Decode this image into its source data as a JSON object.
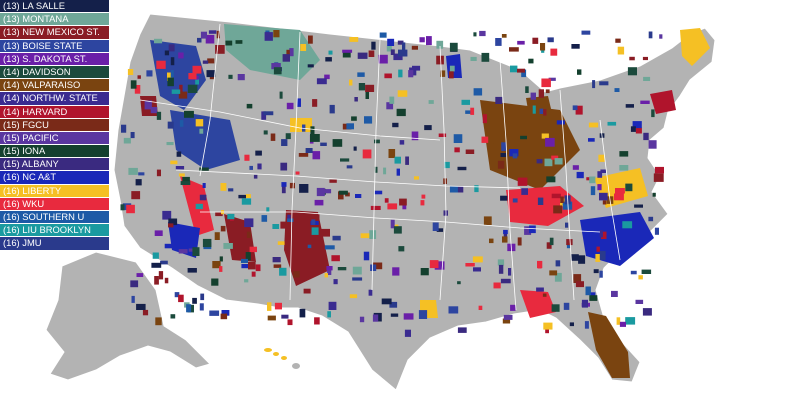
{
  "legend": [
    {
      "label": "(13) LA SALLE",
      "color": "#14204a"
    },
    {
      "label": "(13) MONTANA",
      "color": "#6fa798"
    },
    {
      "label": "(13) NEW MEXICO ST.",
      "color": "#8a1c24"
    },
    {
      "label": "(13) BOISE STATE",
      "color": "#2d45a0"
    },
    {
      "label": "(13) S. DAKOTA ST.",
      "color": "#6a1fa8"
    },
    {
      "label": "(14) DAVIDSON",
      "color": "#1b4a3c"
    },
    {
      "label": "(14) VALPARAISO",
      "color": "#7a4410"
    },
    {
      "label": "(14) NORTHW. STATE",
      "color": "#3a2b90"
    },
    {
      "label": "(14) HARVARD",
      "color": "#b0142c"
    },
    {
      "label": "(15) FGCU",
      "color": "#7a2a18"
    },
    {
      "label": "(15) PACIFIC",
      "color": "#5a36a0"
    },
    {
      "label": "(15) IONA",
      "color": "#14402e"
    },
    {
      "label": "(15) ALBANY",
      "color": "#3a2a80"
    },
    {
      "label": "(16) NC A&T",
      "color": "#1a28b8"
    },
    {
      "label": "(16) LIBERTY",
      "color": "#f5c024"
    },
    {
      "label": "(16) WKU",
      "color": "#e82a3e"
    },
    {
      "label": "(16) SOUTHERN U",
      "color": "#1e5aa6"
    },
    {
      "label": "(16) LIU BROOKLYN",
      "color": "#1a9aa0"
    },
    {
      "label": "(16) JMU",
      "color": "#2a3a8c"
    }
  ],
  "colors": {
    "base": "#b3b3b3",
    "border": "#ffffff",
    "brown": "#7a4410",
    "gold": "#f5c024",
    "navy": "#1a28b8",
    "red": "#e82a3e",
    "teal": "#6fa798",
    "blue": "#2d45a0",
    "maroon": "#8a1c24"
  }
}
